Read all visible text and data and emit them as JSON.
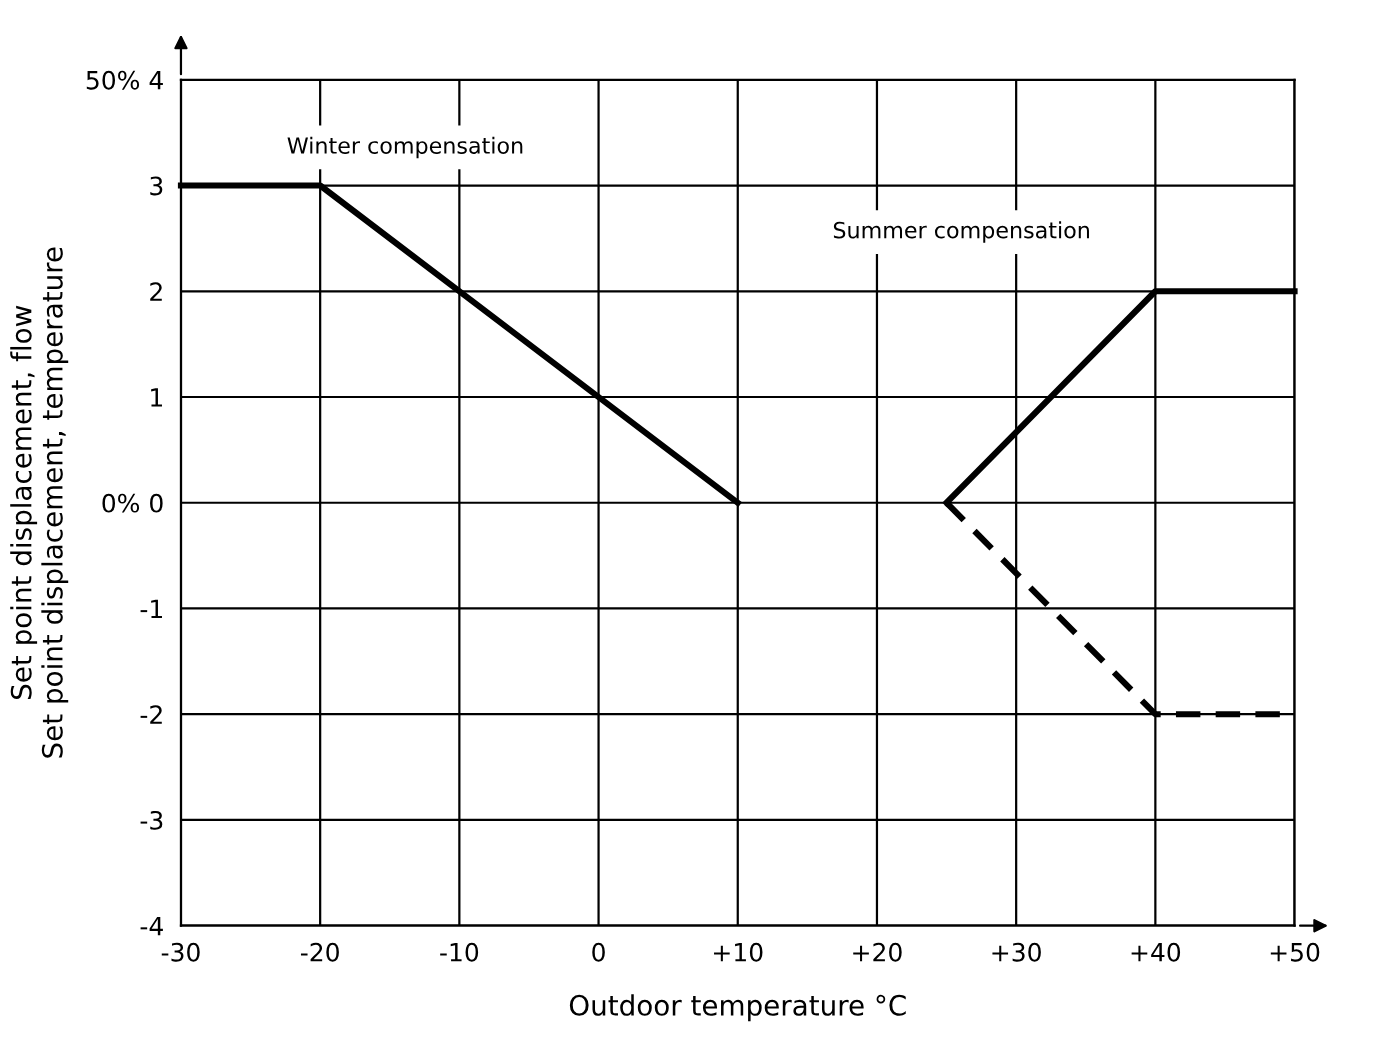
{
  "chart_data": {
    "type": "line",
    "xlabel": "Outdoor temperature °C",
    "ylabel": "Set point displacement, flow\nSet point displacement, temperature",
    "series": [
      {
        "color": "#000000",
        "line_style": "solid",
        "x": [
          -30,
          -20,
          10
        ],
        "values": [
          3,
          3,
          0
        ]
      },
      {
        "color": "#000000",
        "line_style": "solid",
        "x": [
          25,
          40,
          50
        ],
        "values": [
          0,
          2,
          2
        ]
      },
      {
        "color": "#000000",
        "line_style": "dashed",
        "x": [
          25,
          40,
          50
        ],
        "values": [
          0,
          -2,
          -2
        ]
      }
    ],
    "xlim": [
      -30,
      50
    ],
    "ylim": [
      -4,
      4
    ],
    "xticks": [
      -30,
      -20,
      -10,
      0,
      {
        "value": 10,
        "label": "+10"
      },
      {
        "value": 20,
        "label": "+20"
      },
      {
        "value": 30,
        "label": "+30"
      },
      {
        "value": 40,
        "label": "+40"
      },
      {
        "value": 50,
        "label": "+50"
      }
    ],
    "yticks": [
      -4,
      -3,
      -2,
      -1,
      {
        "value": 0,
        "label": "0% 0"
      },
      1,
      2,
      3,
      {
        "value": 4,
        "label": "50% 4"
      }
    ],
    "grid": true,
    "annotations": [
      "Winter compensation",
      "Summer compensation"
    ]
  }
}
